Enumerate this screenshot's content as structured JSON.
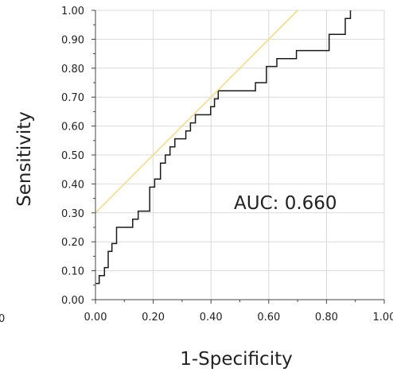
{
  "chart_data": {
    "type": "line",
    "xlabel": "1-Specificity",
    "ylabel": "Sensitivity",
    "xlim": [
      0,
      1
    ],
    "ylim": [
      0,
      1
    ],
    "grid": true,
    "x_ticks": [
      "0.00",
      "0.20",
      "0.40",
      "0.60",
      "0.80",
      "1.00"
    ],
    "y_ticks": [
      "0.00",
      "0.10",
      "0.20",
      "0.30",
      "0.40",
      "0.50",
      "0.60",
      "0.70",
      "0.80",
      "0.90",
      "1.00"
    ],
    "clipped_left_tick": "0",
    "annotation": "AUC: 0.660",
    "colors": {
      "roc": "#1a1a1a",
      "reference": "#f2dc8c",
      "grid": "#d9d9d9",
      "axis": "#444444"
    },
    "series": [
      {
        "name": "",
        "style": "step",
        "points": [
          [
            0.0,
            0.056
          ],
          [
            0.013,
            0.056
          ],
          [
            0.013,
            0.083
          ],
          [
            0.031,
            0.083
          ],
          [
            0.031,
            0.111
          ],
          [
            0.044,
            0.111
          ],
          [
            0.044,
            0.167
          ],
          [
            0.057,
            0.167
          ],
          [
            0.057,
            0.194
          ],
          [
            0.073,
            0.194
          ],
          [
            0.073,
            0.25
          ],
          [
            0.129,
            0.25
          ],
          [
            0.129,
            0.278
          ],
          [
            0.148,
            0.278
          ],
          [
            0.148,
            0.306
          ],
          [
            0.188,
            0.306
          ],
          [
            0.188,
            0.389
          ],
          [
            0.205,
            0.389
          ],
          [
            0.205,
            0.417
          ],
          [
            0.225,
            0.417
          ],
          [
            0.225,
            0.472
          ],
          [
            0.242,
            0.472
          ],
          [
            0.242,
            0.5
          ],
          [
            0.258,
            0.5
          ],
          [
            0.258,
            0.528
          ],
          [
            0.275,
            0.528
          ],
          [
            0.275,
            0.556
          ],
          [
            0.313,
            0.556
          ],
          [
            0.313,
            0.583
          ],
          [
            0.329,
            0.583
          ],
          [
            0.329,
            0.611
          ],
          [
            0.346,
            0.611
          ],
          [
            0.346,
            0.639
          ],
          [
            0.399,
            0.639
          ],
          [
            0.399,
            0.667
          ],
          [
            0.412,
            0.667
          ],
          [
            0.412,
            0.694
          ],
          [
            0.425,
            0.694
          ],
          [
            0.425,
            0.722
          ],
          [
            0.554,
            0.722
          ],
          [
            0.554,
            0.75
          ],
          [
            0.592,
            0.75
          ],
          [
            0.592,
            0.806
          ],
          [
            0.628,
            0.806
          ],
          [
            0.628,
            0.833
          ],
          [
            0.696,
            0.833
          ],
          [
            0.696,
            0.861
          ],
          [
            0.809,
            0.861
          ],
          [
            0.809,
            0.917
          ],
          [
            0.865,
            0.917
          ],
          [
            0.865,
            0.972
          ],
          [
            0.883,
            0.972
          ],
          [
            0.883,
            1.0
          ]
        ]
      },
      {
        "name": "",
        "style": "straight",
        "points": [
          [
            0.0,
            0.3
          ],
          [
            0.7,
            1.0
          ]
        ]
      }
    ]
  }
}
